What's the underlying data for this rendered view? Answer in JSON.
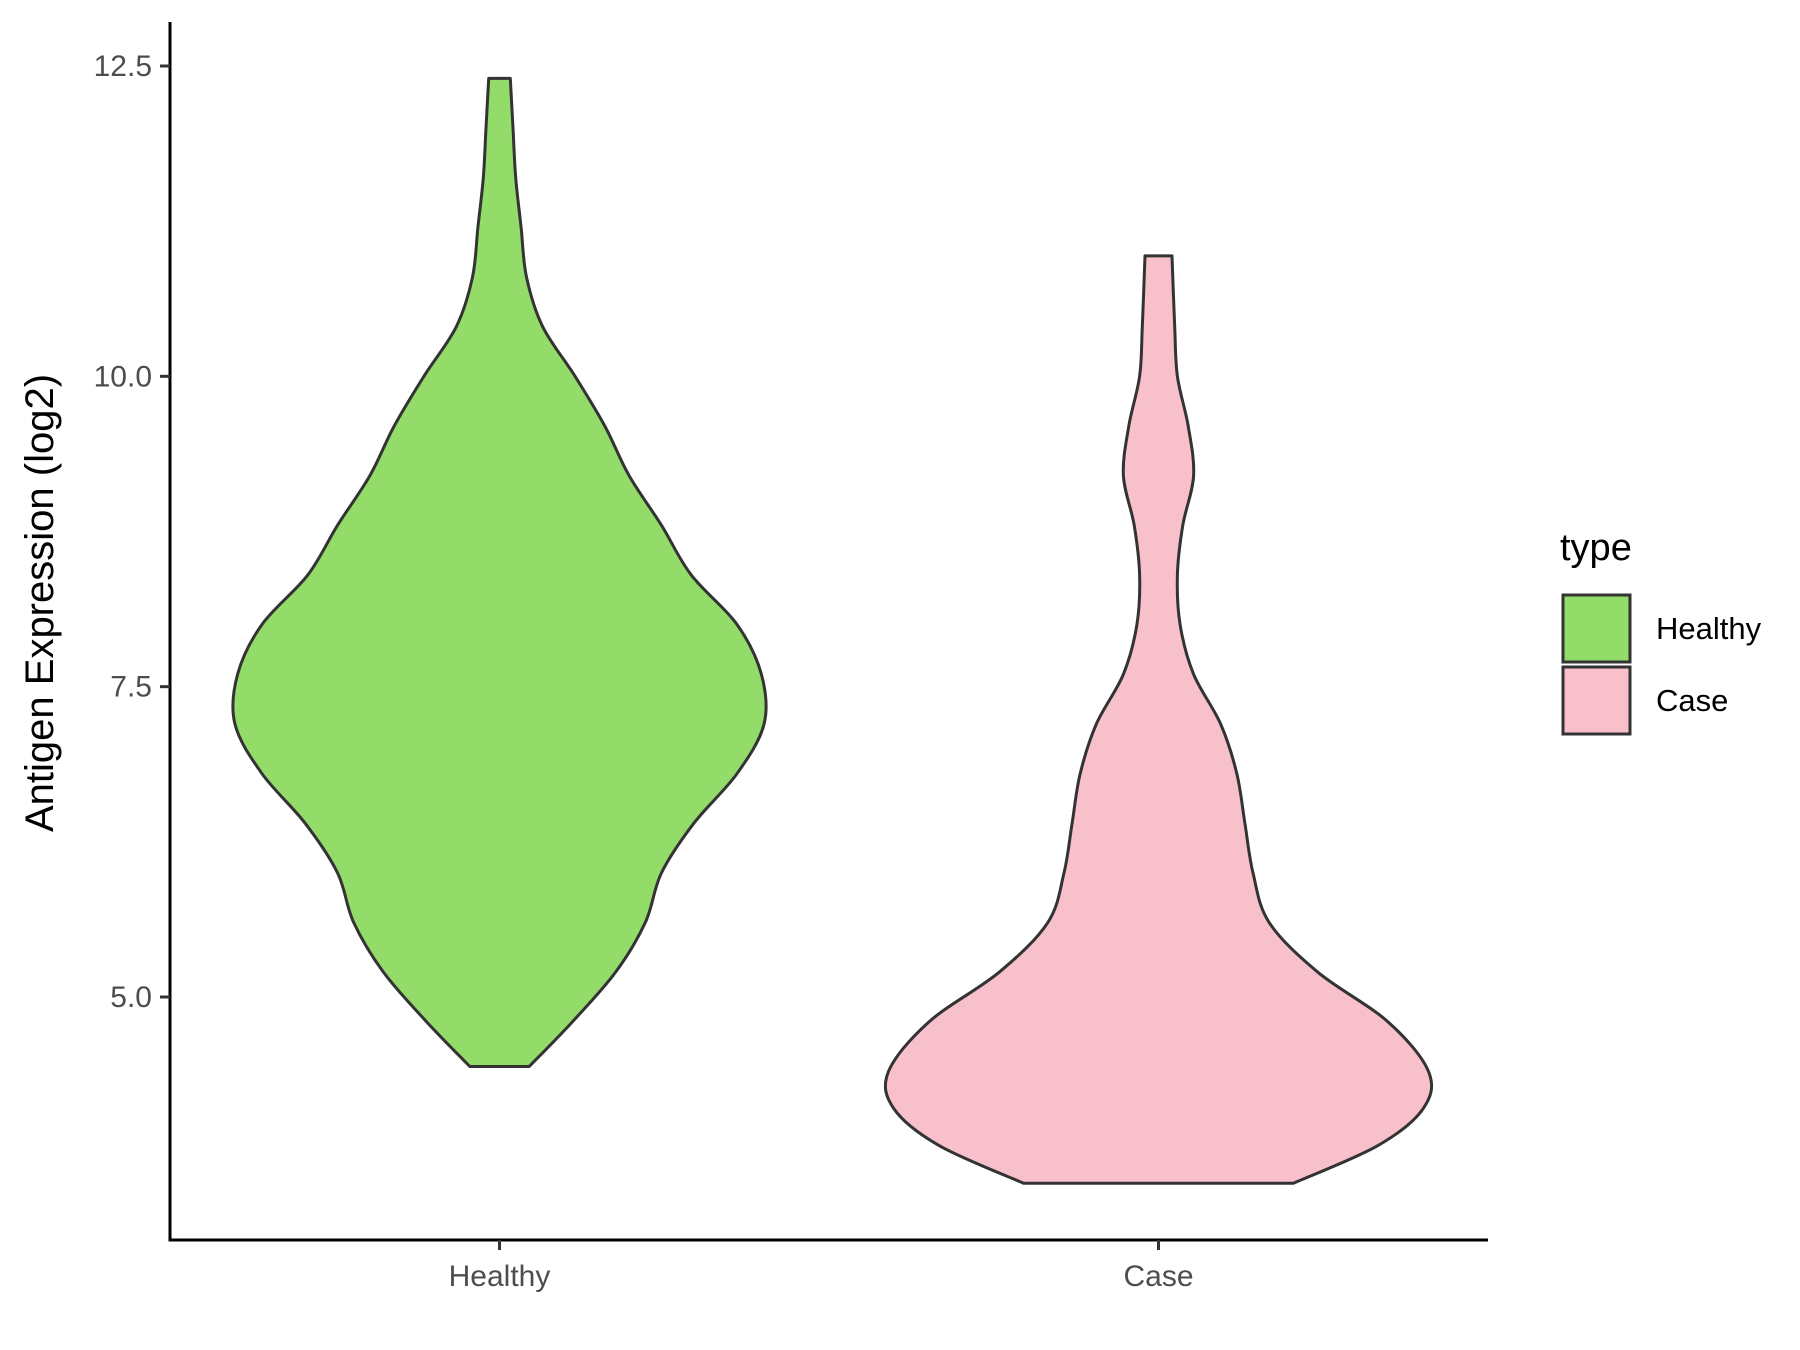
{
  "chart_data": {
    "type": "violin",
    "title": "",
    "xlabel": "",
    "ylabel": "Antigen Expression (log2)",
    "ylim": [
      3.0,
      12.85
    ],
    "y_ticks": [
      5.0,
      7.5,
      10.0,
      12.5
    ],
    "y_tick_labels": [
      "5.0",
      "7.5",
      "10.0",
      "12.5"
    ],
    "categories": [
      "Healthy",
      "Case"
    ],
    "grid": false,
    "legend": {
      "title": "type",
      "position": "right",
      "entries": [
        "Healthy",
        "Case"
      ]
    },
    "colors": {
      "Healthy": "#93dc6a",
      "Case": "#f7c0cb",
      "outline": "#333333"
    },
    "series": [
      {
        "name": "Healthy",
        "min": 4.44,
        "max": 12.4,
        "density_profile": [
          [
            4.44,
            0.11
          ],
          [
            4.8,
            0.27
          ],
          [
            5.2,
            0.43
          ],
          [
            5.6,
            0.54
          ],
          [
            6.0,
            0.6
          ],
          [
            6.4,
            0.72
          ],
          [
            6.8,
            0.88
          ],
          [
            7.2,
            0.98
          ],
          [
            7.6,
            0.97
          ],
          [
            8.0,
            0.88
          ],
          [
            8.4,
            0.71
          ],
          [
            8.8,
            0.6
          ],
          [
            9.2,
            0.48
          ],
          [
            9.6,
            0.39
          ],
          [
            10.0,
            0.28
          ],
          [
            10.4,
            0.16
          ],
          [
            10.8,
            0.1
          ],
          [
            11.2,
            0.08
          ],
          [
            11.6,
            0.06
          ],
          [
            12.0,
            0.05
          ],
          [
            12.4,
            0.04
          ]
        ]
      },
      {
        "name": "Case",
        "min": 3.5,
        "max": 10.97,
        "density_profile": [
          [
            3.5,
            0.5
          ],
          [
            3.8,
            0.81
          ],
          [
            4.1,
            0.98
          ],
          [
            4.4,
            1.0
          ],
          [
            4.8,
            0.85
          ],
          [
            5.2,
            0.59
          ],
          [
            5.6,
            0.41
          ],
          [
            6.0,
            0.35
          ],
          [
            6.4,
            0.32
          ],
          [
            6.8,
            0.29
          ],
          [
            7.2,
            0.23
          ],
          [
            7.6,
            0.13
          ],
          [
            8.0,
            0.08
          ],
          [
            8.4,
            0.07
          ],
          [
            8.8,
            0.09
          ],
          [
            9.2,
            0.13
          ],
          [
            9.6,
            0.11
          ],
          [
            10.0,
            0.07
          ],
          [
            10.4,
            0.06
          ],
          [
            10.97,
            0.05
          ]
        ]
      }
    ]
  }
}
